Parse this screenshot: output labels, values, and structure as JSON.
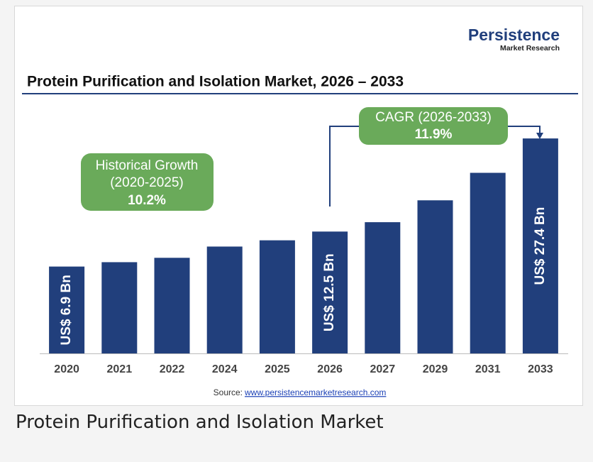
{
  "chart_data": {
    "type": "bar",
    "title": "Protein Purification and Isolation Market, 2026 – 2033",
    "brand": {
      "name": "Persistence",
      "tagline": "Market Research"
    },
    "categories": [
      "2020",
      "2021",
      "2022",
      "2024",
      "2025",
      "2026",
      "2027",
      "2029",
      "2031",
      "2033"
    ],
    "values": [
      6.9,
      7.6,
      8.3,
      10.1,
      11.1,
      12.5,
      14.0,
      17.5,
      21.9,
      27.4
    ],
    "value_labels": [
      "US$ 6.9 Bn",
      null,
      null,
      null,
      null,
      "US$ 12.5 Bn",
      null,
      null,
      null,
      "US$ 27.4 Bn"
    ],
    "color": "#213f7c",
    "ylim": [
      -7,
      29
    ],
    "annotations": [
      {
        "lines": [
          "Historical Growth",
          "(2020-2025)",
          "10.2%"
        ]
      },
      {
        "lines": [
          "CAGR (2026-2033)",
          "11.9%"
        ]
      }
    ],
    "source_label": "Source:",
    "source_link": "www.persistencemarketresearch.com"
  },
  "caption": "Protein Purification and Isolation Market"
}
